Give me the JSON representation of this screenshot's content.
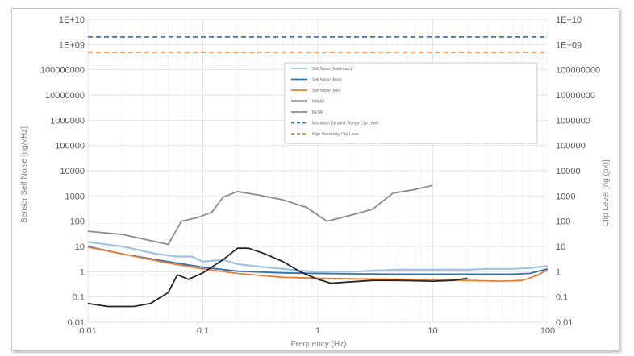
{
  "chart_data": {
    "type": "line",
    "xlabel": "Frequency (Hz)",
    "ylabel_left": "Sensor Self Noise [ng/√Hz]",
    "ylabel_right": "Clip Level [ng (pk)]",
    "x_scale": "log",
    "y_scale": "log",
    "xlim": [
      0.01,
      100
    ],
    "ylim": [
      0.01,
      10000000000
    ],
    "x_ticks": [
      "0.01",
      "0.1",
      "1",
      "10",
      "100"
    ],
    "y_ticks_left": [
      "0.01",
      "0.1",
      "1",
      "10",
      "100",
      "1000",
      "10000",
      "100000",
      "1000000",
      "10000000",
      "100000000",
      "1E+09",
      "1E+10"
    ],
    "y_ticks_right": [
      "0.01",
      "0.1",
      "1",
      "10",
      "100",
      "1000",
      "10000",
      "100000",
      "1000000",
      "10000000",
      "100000000",
      "1E+09",
      "1E+10"
    ],
    "grid": true,
    "legend_position": "top-right",
    "series": [
      {
        "name": "Self Noise (Maximum)",
        "color": "#9dc3e6",
        "style": "solid",
        "points": [
          [
            0.01,
            15
          ],
          [
            0.02,
            10
          ],
          [
            0.04,
            5
          ],
          [
            0.06,
            4
          ],
          [
            0.08,
            4
          ],
          [
            0.1,
            2.5
          ],
          [
            0.15,
            3
          ],
          [
            0.2,
            2
          ],
          [
            0.3,
            1.6
          ],
          [
            0.5,
            1.3
          ],
          [
            0.7,
            1.1
          ],
          [
            1,
            1
          ],
          [
            2,
            1
          ],
          [
            3,
            1.1
          ],
          [
            5,
            1.2
          ],
          [
            7,
            1.2
          ],
          [
            10,
            1.2
          ],
          [
            20,
            1.2
          ],
          [
            30,
            1.3
          ],
          [
            50,
            1.3
          ],
          [
            70,
            1.4
          ],
          [
            100,
            1.7
          ]
        ]
      },
      {
        "name": "Self Noise (Max)",
        "color": "#2e75b6",
        "style": "solid",
        "points": [
          [
            0.01,
            10
          ],
          [
            0.02,
            5
          ],
          [
            0.05,
            2.5
          ],
          [
            0.1,
            1.5
          ],
          [
            0.2,
            1.05
          ],
          [
            0.5,
            0.9
          ],
          [
            1,
            0.85
          ],
          [
            2,
            0.82
          ],
          [
            5,
            0.8
          ],
          [
            10,
            0.8
          ],
          [
            20,
            0.8
          ],
          [
            50,
            0.8
          ],
          [
            70,
            0.85
          ],
          [
            100,
            1.3
          ]
        ]
      },
      {
        "name": "Self Noise (Min)",
        "color": "#ed7d31",
        "style": "solid",
        "points": [
          [
            0.01,
            9.5
          ],
          [
            0.02,
            5
          ],
          [
            0.05,
            2.2
          ],
          [
            0.1,
            1.3
          ],
          [
            0.2,
            0.85
          ],
          [
            0.5,
            0.6
          ],
          [
            1,
            0.55
          ],
          [
            2,
            0.52
          ],
          [
            5,
            0.5
          ],
          [
            10,
            0.48
          ],
          [
            20,
            0.45
          ],
          [
            40,
            0.42
          ],
          [
            60,
            0.45
          ],
          [
            80,
            0.7
          ],
          [
            100,
            1.2
          ]
        ]
      },
      {
        "name": "NHNM",
        "color": "#262626",
        "style": "solid",
        "points": [
          [
            0.01,
            0.055
          ],
          [
            0.015,
            0.042
          ],
          [
            0.025,
            0.042
          ],
          [
            0.035,
            0.055
          ],
          [
            0.05,
            0.15
          ],
          [
            0.06,
            0.75
          ],
          [
            0.075,
            0.5
          ],
          [
            0.1,
            0.9
          ],
          [
            0.15,
            3
          ],
          [
            0.2,
            8.5
          ],
          [
            0.25,
            8.5
          ],
          [
            0.35,
            5
          ],
          [
            0.5,
            2.5
          ],
          [
            0.7,
            1
          ],
          [
            1,
            0.5
          ],
          [
            1.3,
            0.35
          ],
          [
            2,
            0.4
          ],
          [
            3,
            0.45
          ],
          [
            5,
            0.45
          ],
          [
            10,
            0.42
          ],
          [
            15,
            0.45
          ],
          [
            20,
            0.55
          ]
        ]
      },
      {
        "name": "NLNM",
        "color": "#8c8c8c",
        "style": "solid",
        "points": [
          [
            0.01,
            40
          ],
          [
            0.02,
            30
          ],
          [
            0.03,
            20
          ],
          [
            0.05,
            12
          ],
          [
            0.065,
            100
          ],
          [
            0.09,
            140
          ],
          [
            0.12,
            230
          ],
          [
            0.15,
            900
          ],
          [
            0.2,
            1500
          ],
          [
            0.3,
            1100
          ],
          [
            0.5,
            700
          ],
          [
            0.8,
            350
          ],
          [
            1.2,
            100
          ],
          [
            2,
            180
          ],
          [
            3,
            300
          ],
          [
            4.5,
            1300
          ],
          [
            7,
            1800
          ],
          [
            10,
            2600
          ]
        ]
      },
      {
        "name": "Maximum Dynamic Range Clip Level",
        "color": "#4472c4",
        "style": "dashed",
        "points": [
          [
            0.01,
            2000000000
          ],
          [
            100,
            2000000000
          ]
        ]
      },
      {
        "name": "High Sensitivity Clip Level",
        "color": "#ed7d31",
        "style": "dashed",
        "points": [
          [
            0.01,
            500000000
          ],
          [
            100,
            500000000
          ]
        ]
      }
    ]
  }
}
